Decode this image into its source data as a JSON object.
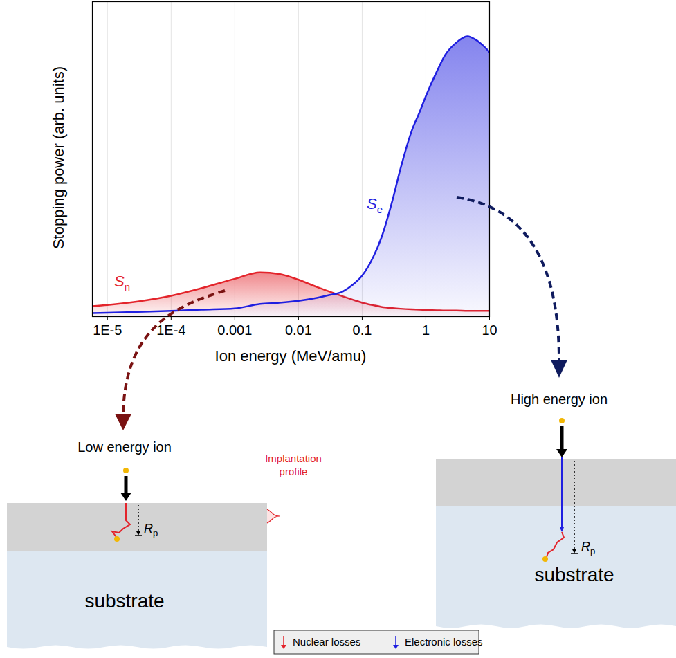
{
  "chart_data": {
    "type": "line",
    "xlabel": "Ion energy (MeV/amu)",
    "ylabel": "Stopping power (arb. units)",
    "log": "x",
    "grid": true,
    "tick_labels": "x",
    "xlim": [
      5.8e-06,
      10
    ],
    "ylim": [
      0,
      100
    ],
    "xticks": [
      {
        "value": 1e-05,
        "label": "1E-5"
      },
      {
        "value": 0.0001,
        "label": "1E-4"
      },
      0.001,
      0.01,
      0.1,
      1,
      10
    ],
    "x": [
      5.8e-06,
      1e-05,
      3e-05,
      0.0001,
      0.0003,
      0.001,
      0.0025,
      0.005,
      0.01,
      0.02,
      0.03,
      0.05,
      0.07,
      0.1,
      0.15,
      0.2,
      0.3,
      0.4,
      0.6,
      0.8,
      1,
      1.5,
      2,
      3,
      4.5,
      6,
      8,
      10
    ],
    "series": [
      {
        "name": "Sn",
        "color": "#e3242b",
        "values": [
          3.3,
          3.7,
          4.8,
          6.6,
          9,
          12,
          14,
          13.5,
          11.7,
          9.3,
          8,
          6.4,
          5.4,
          4.4,
          3.6,
          3.1,
          2.7,
          2.5,
          2.3,
          2.2,
          2.1,
          2,
          1.9,
          1.9,
          1.8,
          1.8,
          1.8,
          1.8
        ]
      },
      {
        "name": "Se",
        "color": "#1f1fe0",
        "values": [
          1.1,
          1.2,
          1.5,
          1.8,
          2.2,
          2.6,
          4,
          4.4,
          5,
          6,
          6.8,
          8,
          10,
          13,
          19,
          25,
          37,
          47,
          59,
          65,
          70,
          78,
          83,
          87,
          89,
          88,
          86,
          84
        ]
      }
    ]
  },
  "diagram": {
    "panels": [
      {
        "title": "Low energy ion",
        "range_label": "Rp",
        "layer": "substrate",
        "profile_label": "Implantation profile"
      },
      {
        "title": "High energy ion",
        "range_label": "Rp",
        "layer": "substrate"
      }
    ],
    "key": [
      {
        "label": "Nuclear losses",
        "color": "#e3242b"
      },
      {
        "label": "Electronic losses",
        "color": "#1f1fe0"
      }
    ]
  }
}
